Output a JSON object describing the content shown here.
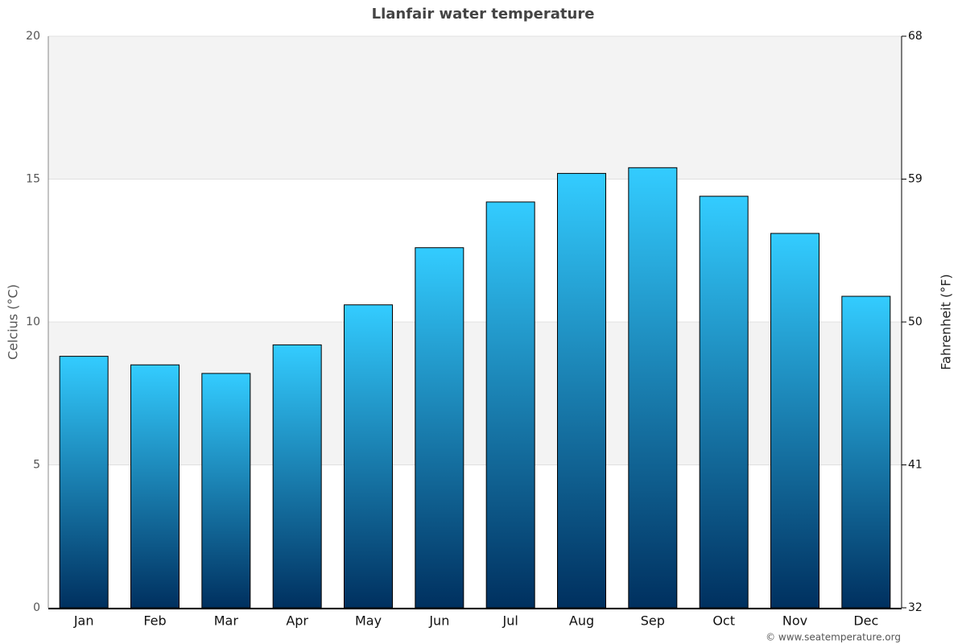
{
  "chart_data": {
    "type": "bar",
    "title": "Llanfair water temperature",
    "y_label": "Celcius (°C)",
    "y2_label": "Fahrenheit (°F)",
    "categories": [
      "Jan",
      "Feb",
      "Mar",
      "Apr",
      "May",
      "Jun",
      "Jul",
      "Aug",
      "Sep",
      "Oct",
      "Nov",
      "Dec"
    ],
    "values": [
      8.8,
      8.5,
      8.2,
      9.2,
      10.6,
      12.6,
      14.2,
      15.2,
      15.4,
      14.4,
      13.1,
      10.9
    ],
    "gradient": [
      "#33ccff",
      "#00305f"
    ],
    "ylim": [
      0,
      20
    ],
    "yticks": [
      0,
      5,
      10,
      15,
      20
    ],
    "y2lim": [
      32,
      68
    ],
    "y2ticks": [
      32,
      41,
      50,
      59,
      68
    ],
    "grid": true,
    "credit": "© www.seatemperature.org"
  }
}
